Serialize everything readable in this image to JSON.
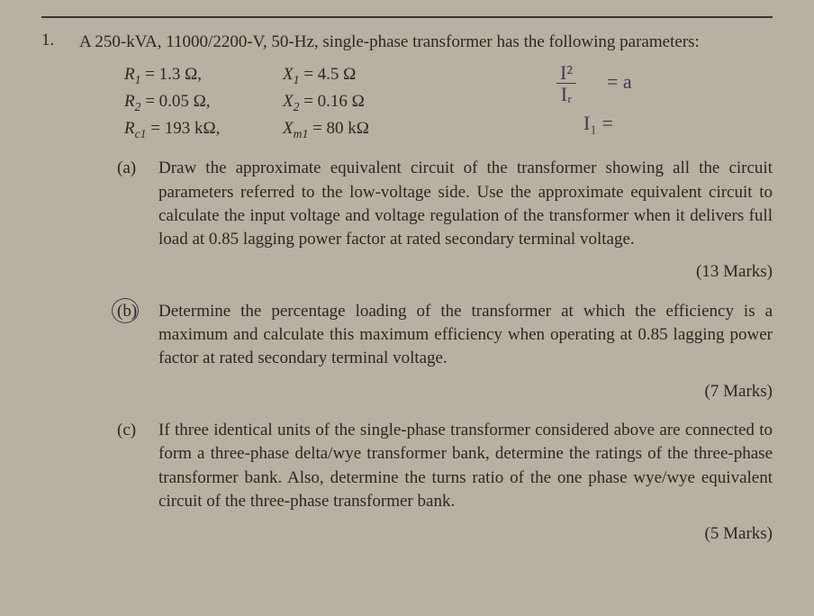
{
  "page": {
    "background_color": "#b8b0a0",
    "text_color": "#2a2825",
    "hand_color": "#3a3a55",
    "font_family": "Times New Roman",
    "base_fontsize_pt": 14
  },
  "question": {
    "number": "1.",
    "intro": "A 250-kVA, 11000/2200-V, 50-Hz, single-phase transformer has the following parameters:",
    "parameters": {
      "rows": [
        {
          "left_sym": "R",
          "left_sub": "1",
          "left_val": " = 1.3 Ω,",
          "right_sym": "X",
          "right_sub": "1",
          "right_val": " = 4.5 Ω"
        },
        {
          "left_sym": "R",
          "left_sub": "2",
          "left_val": " = 0.05 Ω,",
          "right_sym": "X",
          "right_sub": "2",
          "right_val": " = 0.16 Ω"
        },
        {
          "left_sym": "R",
          "left_sub": "c1",
          "left_val": " = 193 kΩ,",
          "right_sym": "X",
          "right_sub": "m1",
          "right_val": " = 80 kΩ"
        }
      ]
    },
    "handwriting": {
      "frac_top": "I²",
      "frac_bot": "Iᵣ",
      "eq": "= a",
      "line2": "I₁ ="
    },
    "parts": [
      {
        "label": "(a)",
        "circled": false,
        "text": "Draw the approximate equivalent circuit of the transformer showing all the circuit parameters referred to the low-voltage side.  Use the approximate equivalent circuit to calculate the input voltage and voltage regulation of the transformer when it delivers full load at 0.85 lagging power factor at rated secondary terminal voltage.",
        "marks": "(13 Marks)"
      },
      {
        "label": "(b)",
        "circled": true,
        "text": "Determine the percentage loading of the transformer at which the efficiency is a maximum and calculate this maximum efficiency when operating at 0.85 lagging power factor at rated secondary terminal voltage.",
        "marks": "(7 Marks)"
      },
      {
        "label": "(c)",
        "circled": false,
        "text": "If three identical units of the single-phase transformer considered above are connected to form a three-phase delta/wye transformer bank, determine the ratings of the three-phase transformer bank.  Also, determine the turns ratio of the one phase wye/wye equivalent circuit of the three-phase transformer bank.",
        "marks": "(5 Marks)"
      }
    ]
  }
}
